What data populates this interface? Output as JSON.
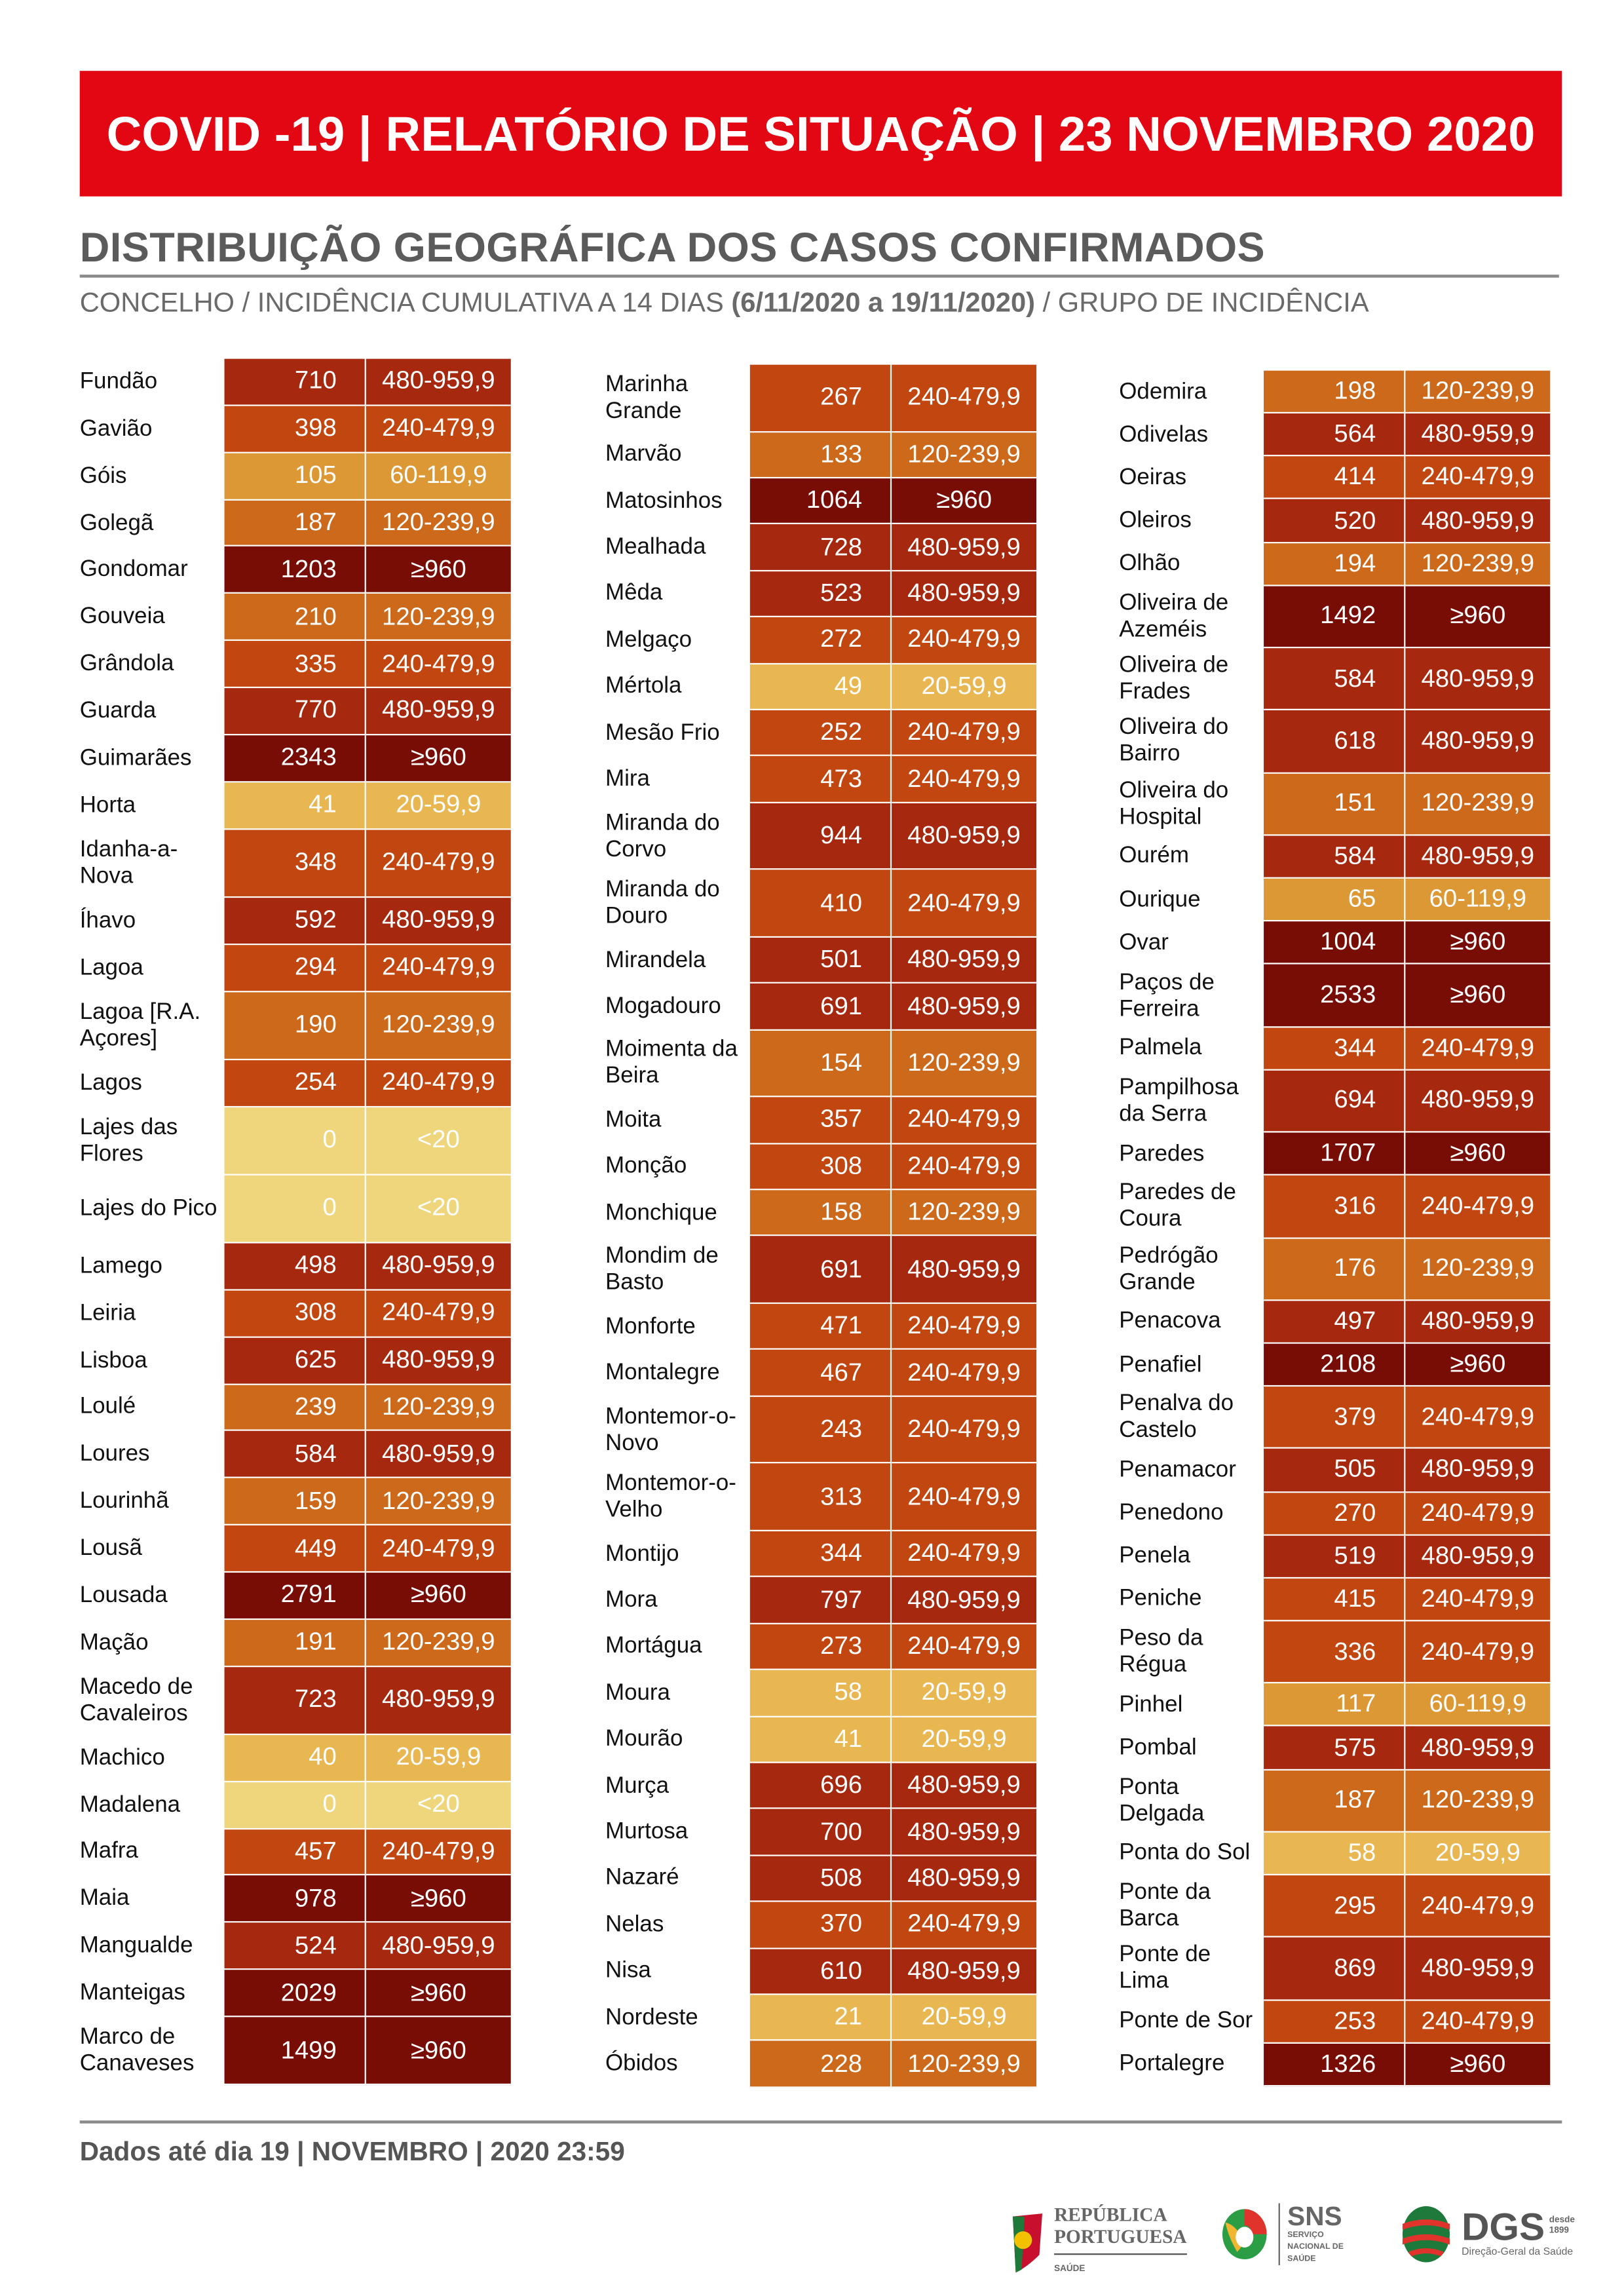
{
  "header": {
    "title": "COVID -19 | RELATÓRIO DE SITUAÇÃO | 23 NOVEMBRO 2020"
  },
  "section": {
    "title": "DISTRIBUIÇÃO GEOGRÁFICA DOS CASOS CONFIRMADOS",
    "caption_a": "CONCELHO / INCIDÊNCIA CUMULATIVA A 14 DIAS ",
    "caption_b": "(6/11/2020 a 19/11/2020)",
    "caption_c": " / GRUPO DE INCIDÊNCIA"
  },
  "group_colors": {
    "≥960": "#780d06",
    "480-959,9": "#a5280f",
    "240-479,9": "#c2460f",
    "120-239,9": "#cc691b",
    "60-119,9": "#dc9834",
    "20-59,9": "#e8b752",
    "<20": "#efd67c"
  },
  "columns": [
    [
      [
        "Fundão",
        710,
        "480-959,9"
      ],
      [
        "Gavião",
        398,
        "240-479,9"
      ],
      [
        "Góis",
        105,
        "60-119,9"
      ],
      [
        "Golegã",
        187,
        "120-239,9"
      ],
      [
        "Gondomar",
        1203,
        "≥960"
      ],
      [
        "Gouveia",
        210,
        "120-239,9"
      ],
      [
        "Grândola",
        335,
        "240-479,9"
      ],
      [
        "Guarda",
        770,
        "480-959,9"
      ],
      [
        "Guimarães",
        2343,
        "≥960"
      ],
      [
        "Horta",
        41,
        "20-59,9"
      ],
      [
        "Idanha-a-\nNova",
        348,
        "240-479,9"
      ],
      [
        "Íhavo",
        592,
        "480-959,9"
      ],
      [
        "Lagoa",
        294,
        "240-479,9"
      ],
      [
        "Lagoa [R.A.\nAçores]",
        190,
        "120-239,9"
      ],
      [
        "Lagos",
        254,
        "240-479,9"
      ],
      [
        "Lajes das\nFlores",
        0,
        "<20"
      ],
      [
        "Lajes do Pico",
        0,
        "<20"
      ],
      [
        "Lamego",
        498,
        "480-959,9"
      ],
      [
        "Leiria",
        308,
        "240-479,9"
      ],
      [
        "Lisboa",
        625,
        "480-959,9"
      ],
      [
        "Loulé",
        239,
        "120-239,9"
      ],
      [
        "Loures",
        584,
        "480-959,9"
      ],
      [
        "Lourinhã",
        159,
        "120-239,9"
      ],
      [
        "Lousã",
        449,
        "240-479,9"
      ],
      [
        "Lousada",
        2791,
        "≥960"
      ],
      [
        "Mação",
        191,
        "120-239,9"
      ],
      [
        "Macedo de\nCavaleiros",
        723,
        "480-959,9"
      ],
      [
        "Machico",
        40,
        "20-59,9"
      ],
      [
        "Madalena",
        0,
        "<20"
      ],
      [
        "Mafra",
        457,
        "240-479,9"
      ],
      [
        "Maia",
        978,
        "≥960"
      ],
      [
        "Mangualde",
        524,
        "480-959,9"
      ],
      [
        "Manteigas",
        2029,
        "≥960"
      ],
      [
        "Marco de\nCanaveses",
        1499,
        "≥960"
      ]
    ],
    [
      [
        "Marinha\nGrande",
        267,
        "240-479,9"
      ],
      [
        "Marvão",
        133,
        "120-239,9"
      ],
      [
        "Matosinhos",
        1064,
        "≥960"
      ],
      [
        "Mealhada",
        728,
        "480-959,9"
      ],
      [
        "Mêda",
        523,
        "480-959,9"
      ],
      [
        "Melgaço",
        272,
        "240-479,9"
      ],
      [
        "Mértola",
        49,
        "20-59,9"
      ],
      [
        "Mesão Frio",
        252,
        "240-479,9"
      ],
      [
        "Mira",
        473,
        "240-479,9"
      ],
      [
        "Miranda do\nCorvo",
        944,
        "480-959,9"
      ],
      [
        "Miranda do\nDouro",
        410,
        "240-479,9"
      ],
      [
        "Mirandela",
        501,
        "480-959,9"
      ],
      [
        "Mogadouro",
        691,
        "480-959,9"
      ],
      [
        "Moimenta da\nBeira",
        154,
        "120-239,9"
      ],
      [
        "Moita",
        357,
        "240-479,9"
      ],
      [
        "Monção",
        308,
        "240-479,9"
      ],
      [
        "Monchique",
        158,
        "120-239,9"
      ],
      [
        "Mondim de\nBasto",
        691,
        "480-959,9"
      ],
      [
        "Monforte",
        471,
        "240-479,9"
      ],
      [
        "Montalegre",
        467,
        "240-479,9"
      ],
      [
        "Montemor-o-\nNovo",
        243,
        "240-479,9"
      ],
      [
        "Montemor-o-\nVelho",
        313,
        "240-479,9"
      ],
      [
        "Montijo",
        344,
        "240-479,9"
      ],
      [
        "Mora",
        797,
        "480-959,9"
      ],
      [
        "Mortágua",
        273,
        "240-479,9"
      ],
      [
        "Moura",
        58,
        "20-59,9"
      ],
      [
        "Mourão",
        41,
        "20-59,9"
      ],
      [
        "Murça",
        696,
        "480-959,9"
      ],
      [
        "Murtosa",
        700,
        "480-959,9"
      ],
      [
        "Nazaré",
        508,
        "480-959,9"
      ],
      [
        "Nelas",
        370,
        "240-479,9"
      ],
      [
        "Nisa",
        610,
        "480-959,9"
      ],
      [
        "Nordeste",
        21,
        "20-59,9"
      ],
      [
        "Óbidos",
        228,
        "120-239,9"
      ]
    ],
    [
      [
        "Odemira",
        198,
        "120-239,9"
      ],
      [
        "Odivelas",
        564,
        "480-959,9"
      ],
      [
        "Oeiras",
        414,
        "240-479,9"
      ],
      [
        "Oleiros",
        520,
        "480-959,9"
      ],
      [
        "Olhão",
        194,
        "120-239,9"
      ],
      [
        "Oliveira de\nAzeméis",
        1492,
        "≥960"
      ],
      [
        "Oliveira de\nFrades",
        584,
        "480-959,9"
      ],
      [
        "Oliveira do\nBairro",
        618,
        "480-959,9"
      ],
      [
        "Oliveira do\nHospital",
        151,
        "120-239,9"
      ],
      [
        "Ourém",
        584,
        "480-959,9"
      ],
      [
        "Ourique",
        65,
        "60-119,9"
      ],
      [
        "Ovar",
        1004,
        "≥960"
      ],
      [
        "Paços de\nFerreira",
        2533,
        "≥960"
      ],
      [
        "Palmela",
        344,
        "240-479,9"
      ],
      [
        "Pampilhosa\nda Serra",
        694,
        "480-959,9"
      ],
      [
        "Paredes",
        1707,
        "≥960"
      ],
      [
        "Paredes de\nCoura",
        316,
        "240-479,9"
      ],
      [
        "Pedrógão\nGrande",
        176,
        "120-239,9"
      ],
      [
        "Penacova",
        497,
        "480-959,9"
      ],
      [
        "Penafiel",
        2108,
        "≥960"
      ],
      [
        "Penalva do\nCastelo",
        379,
        "240-479,9"
      ],
      [
        "Penamacor",
        505,
        "480-959,9"
      ],
      [
        "Penedono",
        270,
        "240-479,9"
      ],
      [
        "Penela",
        519,
        "480-959,9"
      ],
      [
        "Peniche",
        415,
        "240-479,9"
      ],
      [
        "Peso da\nRégua",
        336,
        "240-479,9"
      ],
      [
        "Pinhel",
        117,
        "60-119,9"
      ],
      [
        "Pombal",
        575,
        "480-959,9"
      ],
      [
        "Ponta\nDelgada",
        187,
        "120-239,9"
      ],
      [
        "Ponta do Sol",
        58,
        "20-59,9"
      ],
      [
        "Ponte da\nBarca",
        295,
        "240-479,9"
      ],
      [
        "Ponte de\nLima",
        869,
        "480-959,9"
      ],
      [
        "Ponte de Sor",
        253,
        "240-479,9"
      ],
      [
        "Portalegre",
        1326,
        "≥960"
      ]
    ]
  ],
  "footer": {
    "text": "Dados até dia 19 | NOVEMBRO | 2020 23:59"
  },
  "logos": {
    "republica": "REPÚBLICA PORTUGUESA",
    "republica_sub": "SAÚDE",
    "sns": "SNS",
    "sns_sub": "SERVIÇO NACIONAL DE SAÚDE",
    "dgs": "DGS",
    "dgs_sub": "Direção-Geral da Saúde",
    "dgs_year": "desde 1899"
  }
}
